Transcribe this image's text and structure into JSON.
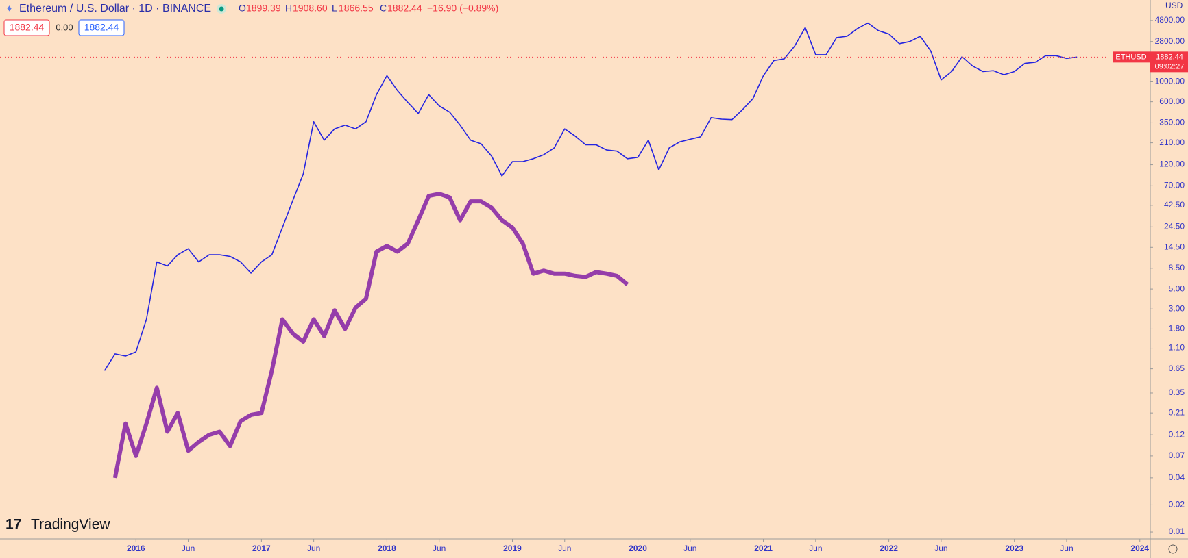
{
  "header": {
    "title": "Ethereum / U.S. Dollar · 1D · BINANCE",
    "ohlc": {
      "o_label": "O",
      "o": "1899.39",
      "h_label": "H",
      "h": "1908.60",
      "l_label": "L",
      "l": "1866.55",
      "c_label": "C",
      "c": "1882.44",
      "change": "−16.90 (−0.89%)"
    },
    "boxes": [
      "1882.44",
      "0.00",
      "1882.44"
    ],
    "currency": "USD"
  },
  "price_tag": {
    "symbol": "ETHUSD",
    "price": "1882.44",
    "countdown": "09:02:27"
  },
  "logo": "TradingView",
  "chart_data": {
    "type": "line",
    "log_scale": true,
    "grid": false,
    "x": [
      "2015-10",
      "2015-11",
      "2015-12",
      "2016-01",
      "2016-02",
      "2016-03",
      "2016-04",
      "2016-05",
      "2016-06",
      "2016-07",
      "2016-08",
      "2016-09",
      "2016-10",
      "2016-11",
      "2016-12",
      "2017-01",
      "2017-02",
      "2017-03",
      "2017-04",
      "2017-05",
      "2017-06",
      "2017-07",
      "2017-08",
      "2017-09",
      "2017-10",
      "2017-11",
      "2017-12",
      "2018-01",
      "2018-02",
      "2018-03",
      "2018-04",
      "2018-05",
      "2018-06",
      "2018-07",
      "2018-08",
      "2018-09",
      "2018-10",
      "2018-11",
      "2018-12",
      "2019-01",
      "2019-02",
      "2019-03",
      "2019-04",
      "2019-05",
      "2019-06",
      "2019-07",
      "2019-08",
      "2019-09",
      "2019-10",
      "2019-11",
      "2019-12",
      "2020-01",
      "2020-02",
      "2020-03",
      "2020-04",
      "2020-05",
      "2020-06",
      "2020-07",
      "2020-08",
      "2020-09",
      "2020-10",
      "2020-11",
      "2020-12",
      "2021-01",
      "2021-02",
      "2021-03",
      "2021-04",
      "2021-05",
      "2021-06",
      "2021-07",
      "2021-08",
      "2021-09",
      "2021-10",
      "2021-11",
      "2021-12",
      "2022-01",
      "2022-02",
      "2022-03",
      "2022-04",
      "2022-05",
      "2022-06",
      "2022-07",
      "2022-08",
      "2022-09",
      "2022-10",
      "2022-11",
      "2022-12",
      "2023-01",
      "2023-02",
      "2023-03",
      "2023-04",
      "2023-05",
      "2023-06",
      "2023-07"
    ],
    "series": [
      {
        "name": "ETHUSD",
        "color": "#2424e0",
        "values": [
          0.62,
          0.95,
          0.9,
          1.0,
          2.3,
          10,
          9,
          12,
          14,
          10,
          12,
          12,
          11.5,
          10,
          7.5,
          10,
          12,
          24,
          48,
          95,
          360,
          225,
          300,
          330,
          300,
          360,
          720,
          1170,
          800,
          590,
          445,
          720,
          540,
          460,
          330,
          225,
          205,
          150,
          90,
          130,
          130,
          140,
          155,
          185,
          300,
          250,
          200,
          200,
          175,
          170,
          140,
          145,
          225,
          105,
          185,
          215,
          230,
          245,
          400,
          385,
          380,
          490,
          650,
          1170,
          1720,
          1800,
          2500,
          4000,
          2000,
          2000,
          3100,
          3200,
          3900,
          4500,
          3700,
          3400,
          2650,
          2800,
          3200,
          2200,
          1050,
          1300,
          1900,
          1500,
          1300,
          1330,
          1200,
          1300,
          1600,
          1650,
          1950,
          1950,
          1820,
          1882.44
        ]
      },
      {
        "color": "#8a2ba6",
        "values": [
          null,
          0.04,
          0.16,
          0.07,
          0.16,
          0.4,
          0.13,
          0.21,
          0.08,
          0.1,
          0.12,
          0.13,
          0.09,
          0.17,
          0.2,
          0.21,
          0.62,
          2.3,
          1.6,
          1.3,
          2.3,
          1.5,
          2.9,
          1.8,
          3.1,
          3.9,
          13,
          15,
          13,
          16,
          29,
          54,
          57,
          52,
          29,
          47,
          47,
          40,
          29,
          24,
          16,
          7.4,
          8,
          7.4,
          7.4,
          7,
          6.8,
          7.7,
          7.4,
          7,
          5.6,
          null,
          null,
          null,
          null,
          null,
          null,
          null,
          null,
          null,
          null,
          null,
          null,
          null,
          null,
          null,
          null,
          null,
          null,
          null,
          null,
          null,
          null,
          null,
          null,
          null,
          null,
          null,
          null,
          null,
          null,
          null,
          null,
          null,
          null,
          null,
          null,
          null,
          null,
          null,
          null,
          null,
          null,
          null
        ]
      }
    ],
    "last_price": 1882.44,
    "xlim": [
      "2014-12",
      "2024-02"
    ],
    "xticks": [
      {
        "value": "2016-01",
        "label": "2016"
      },
      {
        "value": "2016-06",
        "label": "Jun"
      },
      {
        "value": "2017-01",
        "label": "2017"
      },
      {
        "value": "2017-06",
        "label": "Jun"
      },
      {
        "value": "2018-01",
        "label": "2018"
      },
      {
        "value": "2018-06",
        "label": "Jun"
      },
      {
        "value": "2019-01",
        "label": "2019"
      },
      {
        "value": "2019-06",
        "label": "Jun"
      },
      {
        "value": "2020-01",
        "label": "2020"
      },
      {
        "value": "2020-06",
        "label": "Jun"
      },
      {
        "value": "2021-01",
        "label": "2021"
      },
      {
        "value": "2021-06",
        "label": "Jun"
      },
      {
        "value": "2022-01",
        "label": "2022"
      },
      {
        "value": "2022-06",
        "label": "Jun"
      },
      {
        "value": "2023-01",
        "label": "2023"
      },
      {
        "value": "2023-06",
        "label": "Jun"
      },
      {
        "value": "2024-01",
        "label": "2024"
      }
    ],
    "ylim": [
      0.0084,
      8100
    ],
    "yticks": [
      {
        "value": 4800,
        "label": "4800.00"
      },
      {
        "value": 2800,
        "label": "2800.00"
      },
      {
        "value": 1000,
        "label": "1000.00"
      },
      {
        "value": 600,
        "label": "600.00"
      },
      {
        "value": 350,
        "label": "350.00"
      },
      {
        "value": 210,
        "label": "210.00"
      },
      {
        "value": 120,
        "label": "120.00"
      },
      {
        "value": 70,
        "label": "70.00"
      },
      {
        "value": 42.5,
        "label": "42.50"
      },
      {
        "value": 24.5,
        "label": "24.50"
      },
      {
        "value": 14.5,
        "label": "14.50"
      },
      {
        "value": 8.5,
        "label": "8.50"
      },
      {
        "value": 5,
        "label": "5.00"
      },
      {
        "value": 3,
        "label": "3.00"
      },
      {
        "value": 1.8,
        "label": "1.80"
      },
      {
        "value": 1.1,
        "label": "1.10"
      },
      {
        "value": 0.65,
        "label": "0.65"
      },
      {
        "value": 0.35,
        "label": "0.35"
      },
      {
        "value": 0.21,
        "label": "0.21"
      },
      {
        "value": 0.12,
        "label": "0.12"
      },
      {
        "value": 0.07,
        "label": "0.07"
      },
      {
        "value": 0.04,
        "label": "0.04"
      },
      {
        "value": 0.02,
        "label": "0.02"
      },
      {
        "value": 0.01,
        "label": "0.01"
      }
    ]
  }
}
